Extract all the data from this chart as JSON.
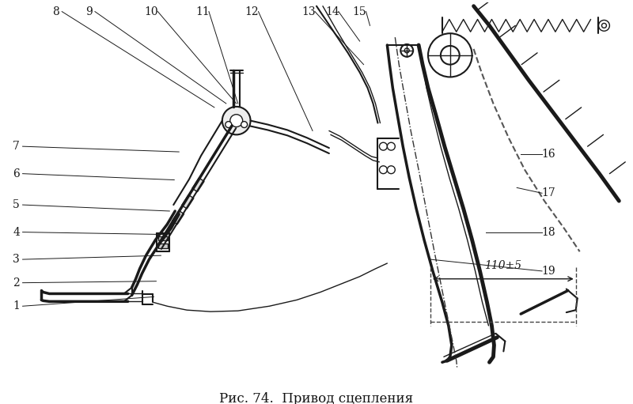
{
  "caption": "Рис. 74.  Привод сцепления",
  "caption_fontsize": 12,
  "bg_color": "#ffffff",
  "fig_width": 8.0,
  "fig_height": 5.11,
  "dpi": 100,
  "lc": "#1a1a1a",
  "annotation_text": "110±5"
}
